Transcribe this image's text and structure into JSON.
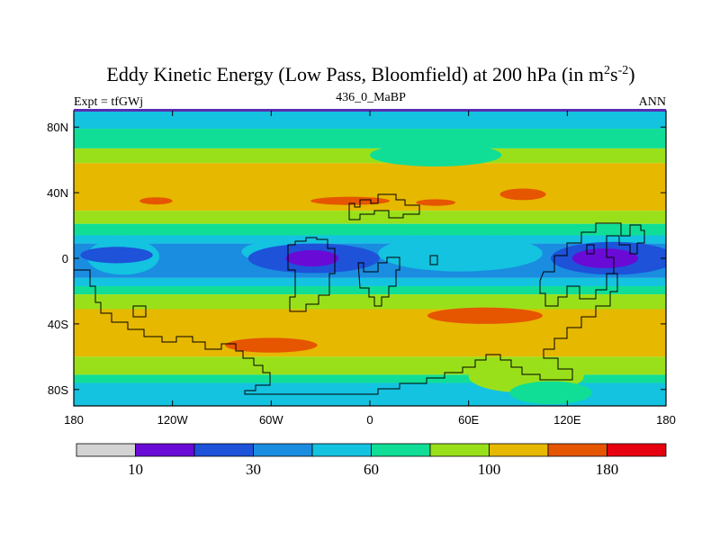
{
  "chart_data": {
    "type": "heatmap",
    "title": "Eddy Kinetic Energy (Low Pass, Bloomfield) at 200 hPa (in m",
    "title_sup1": "2",
    "title_mid": "s",
    "title_sup2": "-2",
    "title_end": ")",
    "subtitle_left": "Expt = tfGWj",
    "subtitle_center": "436_0_MaBP",
    "subtitle_right": "ANN",
    "x_range": [
      -180,
      180
    ],
    "y_range": [
      -90,
      90
    ],
    "x_ticks": [
      {
        "value": -180,
        "label": "180"
      },
      {
        "value": -120,
        "label": "120W"
      },
      {
        "value": -60,
        "label": "60W"
      },
      {
        "value": 0,
        "label": "0"
      },
      {
        "value": 60,
        "label": "60E"
      },
      {
        "value": 120,
        "label": "120E"
      },
      {
        "value": 180,
        "label": "180"
      }
    ],
    "y_ticks": [
      {
        "value": 80,
        "label": "80N"
      },
      {
        "value": 40,
        "label": "40N"
      },
      {
        "value": 0,
        "label": "0"
      },
      {
        "value": -40,
        "label": "40S"
      },
      {
        "value": -80,
        "label": "80S"
      }
    ],
    "colorbar": {
      "colors": [
        "#d3d3d3",
        "#6a0ad6",
        "#1d52d9",
        "#1a8de0",
        "#13c3e0",
        "#10de96",
        "#9ae01a",
        "#e6b800",
        "#e65500",
        "#e60010"
      ],
      "labels": [
        {
          "boundary": 1,
          "label": "10"
        },
        {
          "boundary": 3,
          "label": "30"
        },
        {
          "boundary": 5,
          "label": "60"
        },
        {
          "boundary": 7,
          "label": "100"
        },
        {
          "boundary": 9,
          "label": "180"
        }
      ]
    },
    "lat_bands": [
      {
        "lat": [
          90,
          79
        ],
        "color_index": 4
      },
      {
        "lat": [
          79,
          67
        ],
        "color_index": 5
      },
      {
        "lat": [
          67,
          58
        ],
        "color_index": 6
      },
      {
        "lat": [
          58,
          29
        ],
        "color_index": 7
      },
      {
        "lat": [
          29,
          21
        ],
        "color_index": 6
      },
      {
        "lat": [
          21,
          14
        ],
        "color_index": 5
      },
      {
        "lat": [
          14,
          9
        ],
        "color_index": 4
      },
      {
        "lat": [
          9,
          -12
        ],
        "color_index": 3
      },
      {
        "lat": [
          -12,
          -17
        ],
        "color_index": 4
      },
      {
        "lat": [
          -17,
          -22
        ],
        "color_index": 5
      },
      {
        "lat": [
          -22,
          -31
        ],
        "color_index": 6
      },
      {
        "lat": [
          -31,
          -60
        ],
        "color_index": 7
      },
      {
        "lat": [
          -60,
          -71
        ],
        "color_index": 6
      },
      {
        "lat": [
          -71,
          -76
        ],
        "color_index": 5
      },
      {
        "lat": [
          -76,
          -90
        ],
        "color_index": 4
      }
    ],
    "regions": [
      {
        "name": "central-pacific-light-blue",
        "color_index": 4,
        "center": [
          -150,
          1
        ],
        "radius": [
          22,
          11
        ]
      },
      {
        "name": "atlantic-light-blue",
        "color_index": 4,
        "center": [
          55,
          3
        ],
        "radius": [
          50,
          11
        ]
      },
      {
        "name": "atlantic-cyan",
        "color_index": 4,
        "center": [
          -60,
          4
        ],
        "radius": [
          18,
          6
        ]
      },
      {
        "name": "pacific-blue-west",
        "color_index": 2,
        "center": [
          -154,
          2
        ],
        "radius": [
          22,
          5
        ]
      },
      {
        "name": "south-america-blue",
        "color_index": 2,
        "center": [
          -34,
          0
        ],
        "radius": [
          40,
          9
        ]
      },
      {
        "name": "south-america-indigo",
        "color_index": 1,
        "center": [
          -35,
          0
        ],
        "radius": [
          16,
          5
        ]
      },
      {
        "name": "west-pacific-blue",
        "color_index": 2,
        "center": [
          148,
          0
        ],
        "radius": [
          38,
          10
        ]
      },
      {
        "name": "west-pacific-indigo",
        "color_index": 1,
        "center": [
          143,
          0
        ],
        "radius": [
          20,
          6
        ]
      },
      {
        "name": "north-jet-red-west",
        "color_index": 8,
        "center": [
          -130,
          35
        ],
        "radius": [
          10,
          2.2
        ]
      },
      {
        "name": "north-jet-red-center",
        "color_index": 8,
        "center": [
          -12,
          35
        ],
        "radius": [
          24,
          2.5
        ]
      },
      {
        "name": "north-jet-red-east",
        "color_index": 8,
        "center": [
          40,
          34
        ],
        "radius": [
          12,
          2
        ]
      },
      {
        "name": "north-jet-red-asia",
        "color_index": 8,
        "center": [
          93,
          39
        ],
        "radius": [
          14,
          3.5
        ]
      },
      {
        "name": "north-green-bulge",
        "color_index": 5,
        "center": [
          40,
          63
        ],
        "radius": [
          40,
          7
        ]
      },
      {
        "name": "south-jet-red-atlantic",
        "color_index": 8,
        "center": [
          -60,
          -53
        ],
        "radius": [
          28,
          4.5
        ]
      },
      {
        "name": "south-jet-red-indian",
        "color_index": 8,
        "center": [
          70,
          -35
        ],
        "radius": [
          35,
          5
        ]
      },
      {
        "name": "antarctic-lime-bulge",
        "color_index": 6,
        "center": [
          95,
          -72
        ],
        "radius": [
          35,
          10
        ]
      },
      {
        "name": "antarctic-green-bulge",
        "color_index": 5,
        "center": [
          110,
          -82
        ],
        "radius": [
          25,
          7
        ]
      }
    ]
  }
}
